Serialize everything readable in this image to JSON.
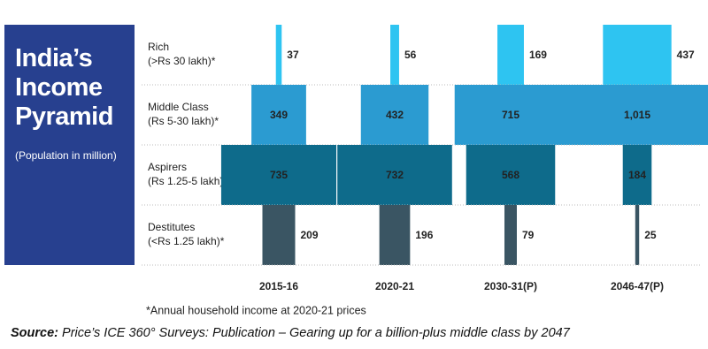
{
  "chart_data": {
    "type": "pyramid",
    "title": "India’s Income Pyramid",
    "subtitle": "(Population in million)",
    "categories": [
      "2015-16",
      "2020-21",
      "2030-31(P)",
      "2046-47(P)"
    ],
    "series": [
      {
        "name": "Rich",
        "range": "(>Rs 30 lakh)*",
        "color": "#2ec4f1",
        "values": [
          37,
          56,
          169,
          437
        ]
      },
      {
        "name": "Middle Class",
        "range": "(Rs 5-30 lakh)*",
        "color": "#2b9bd1",
        "values": [
          349,
          432,
          715,
          1015
        ],
        "value_labels": [
          "349",
          "432",
          "715",
          "1,015"
        ]
      },
      {
        "name": "Aspirers",
        "range": "(Rs 1.25-5 lakh)*",
        "color": "#0e6b8b",
        "values": [
          735,
          732,
          568,
          184
        ]
      },
      {
        "name": "Destitutes",
        "range": "(<Rs 1.25 lakh)*",
        "color": "#3a5563",
        "values": [
          209,
          196,
          79,
          25
        ]
      }
    ],
    "footnote": "*Annual household income at 2020-21 prices",
    "source": {
      "label": "Source:",
      "text": "Price’s ICE 360° Surveys: Publication – Gearing up for a billion-plus middle class by 2047"
    }
  }
}
